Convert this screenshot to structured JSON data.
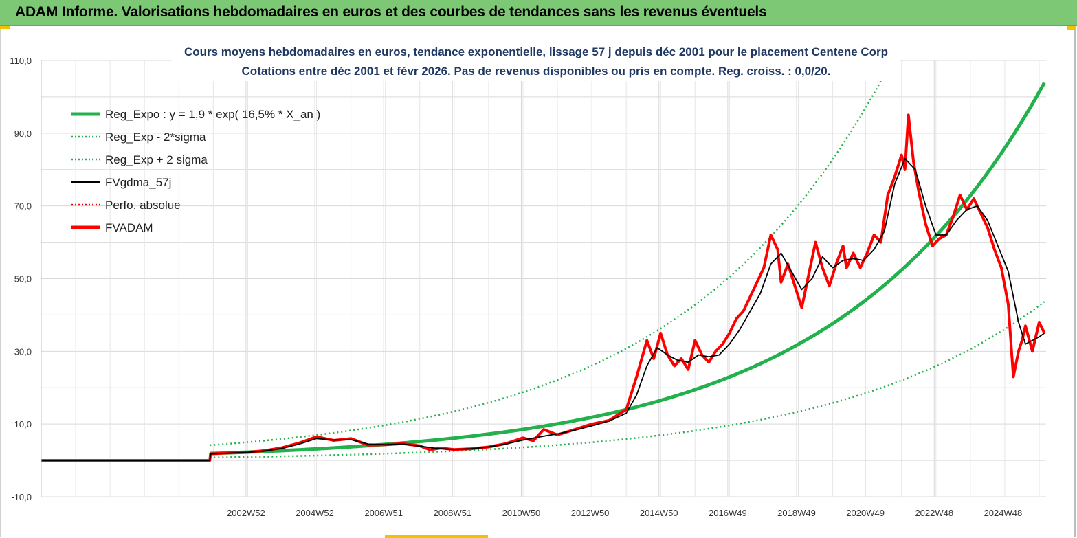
{
  "header": {
    "title": "ADAM Informe. Valorisations hebdomadaires en euros et des courbes de tendances sans les revenus éventuels"
  },
  "chart_data": {
    "type": "line",
    "subtitle_line1": "Cours moyens hebdomadaires en euros, tendance exponentielle, lissage 57 j depuis déc 2001 pour le placement Centene Corp",
    "subtitle_line2": "Cotations entre déc 2001 et févr 2026. Pas de revenus disponibles ou pris en compte. Reg. croiss. : 0,0/20.",
    "ylim": [
      -10,
      110
    ],
    "yticks": [
      "-10,0",
      "10,0",
      "30,0",
      "50,0",
      "70,0",
      "90,0",
      "110,0"
    ],
    "xlim": [
      1997,
      2026.2
    ],
    "xticks": [
      {
        "label": "2002W52",
        "x": 2002.95
      },
      {
        "label": "2004W52",
        "x": 2004.95
      },
      {
        "label": "2006W51",
        "x": 2006.95
      },
      {
        "label": "2008W51",
        "x": 2008.95
      },
      {
        "label": "2010W50",
        "x": 2010.95
      },
      {
        "label": "2012W50",
        "x": 2012.95
      },
      {
        "label": "2014W50",
        "x": 2014.95
      },
      {
        "label": "2016W49",
        "x": 2016.95
      },
      {
        "label": "2018W49",
        "x": 2018.95
      },
      {
        "label": "2020W49",
        "x": 2020.95
      },
      {
        "label": "2022W48",
        "x": 2022.95
      },
      {
        "label": "2024W48",
        "x": 2024.95
      }
    ],
    "grid": true,
    "legend_position": "top-left",
    "legend": [
      {
        "label": "Reg_Expo : y = 1,9 * exp( 16,5% *  X_an )",
        "color": "#22b14c",
        "style": "solid-thick"
      },
      {
        "label": "Reg_Exp - 2*sigma",
        "color": "#22b14c",
        "style": "dotted"
      },
      {
        "label": "Reg_Exp + 2 sigma",
        "color": "#22b14c",
        "style": "dotted"
      },
      {
        "label": "FVgdma_57j",
        "color": "#000000",
        "style": "solid"
      },
      {
        "label": "Perfo. absolue",
        "color": "#ff0000",
        "style": "dotted"
      },
      {
        "label": "FVADAM",
        "color": "#ff0000",
        "style": "solid-thick"
      }
    ],
    "regression": {
      "a": 1.9,
      "rate": 0.165,
      "x0": 2001.9,
      "x_end": 2026.15,
      "lower_factor": 0.42,
      "upper_factor": 2.2
    },
    "series": [
      {
        "name": "FVADAM",
        "color": "#ff0000",
        "x": [
          1997.0,
          2001.9,
          2001.92,
          2002.5,
          2003.0,
          2003.5,
          2004.0,
          2004.5,
          2005.0,
          2005.5,
          2006.0,
          2006.5,
          2007.0,
          2007.5,
          2008.0,
          2008.3,
          2008.6,
          2009.0,
          2009.5,
          2010.0,
          2010.5,
          2011.0,
          2011.3,
          2011.6,
          2012.0,
          2012.5,
          2013.0,
          2013.5,
          2014.0,
          2014.3,
          2014.6,
          2014.8,
          2015.0,
          2015.2,
          2015.4,
          2015.6,
          2015.8,
          2016.0,
          2016.2,
          2016.4,
          2016.6,
          2016.8,
          2017.0,
          2017.2,
          2017.4,
          2017.6,
          2017.8,
          2018.0,
          2018.2,
          2018.4,
          2018.5,
          2018.7,
          2018.9,
          2019.1,
          2019.3,
          2019.5,
          2019.7,
          2019.9,
          2020.1,
          2020.3,
          2020.4,
          2020.6,
          2020.8,
          2021.0,
          2021.2,
          2021.4,
          2021.6,
          2021.8,
          2022.0,
          2022.1,
          2022.2,
          2022.35,
          2022.5,
          2022.7,
          2022.9,
          2023.1,
          2023.3,
          2023.5,
          2023.7,
          2023.9,
          2024.1,
          2024.3,
          2024.5,
          2024.7,
          2024.9,
          2025.1,
          2025.25,
          2025.4,
          2025.5,
          2025.6,
          2025.8,
          2026.0,
          2026.15
        ],
        "values": [
          0.0,
          0.0,
          1.8,
          2.1,
          2.2,
          2.7,
          3.5,
          4.8,
          6.5,
          5.5,
          6.0,
          4.2,
          4.3,
          4.6,
          4.0,
          2.9,
          3.4,
          3.0,
          3.2,
          3.7,
          4.6,
          6.2,
          5.4,
          8.5,
          7.0,
          8.5,
          10.0,
          11.0,
          14.0,
          23.0,
          33.0,
          28.0,
          35.0,
          29.0,
          26.0,
          28.0,
          25.0,
          33.0,
          29.0,
          27.0,
          30.0,
          32.0,
          35.0,
          39.0,
          41.0,
          45.0,
          49.0,
          53.0,
          62.0,
          58.0,
          49.0,
          54.0,
          48.0,
          42.0,
          51.0,
          60.0,
          53.0,
          48.0,
          54.0,
          59.0,
          53.0,
          57.0,
          53.0,
          57.0,
          62.0,
          60.0,
          73.0,
          78.0,
          84.0,
          80.0,
          95.0,
          82.0,
          74.0,
          65.0,
          59.0,
          61.0,
          62.0,
          67.0,
          73.0,
          69.0,
          72.0,
          68.0,
          64.0,
          58.0,
          53.0,
          43.0,
          23.0,
          30.0,
          33.0,
          37.0,
          30.0,
          38.0,
          35.0
        ]
      },
      {
        "name": "FVgdma_57j",
        "color": "#000000",
        "x": [
          1997.0,
          2001.9,
          2001.92,
          2002.5,
          2003.0,
          2003.5,
          2004.0,
          2004.5,
          2005.0,
          2005.5,
          2006.0,
          2006.5,
          2007.0,
          2007.5,
          2008.0,
          2008.5,
          2009.0,
          2009.5,
          2010.0,
          2010.5,
          2011.0,
          2011.5,
          2012.0,
          2012.5,
          2013.0,
          2013.5,
          2014.0,
          2014.3,
          2014.6,
          2014.9,
          2015.2,
          2015.5,
          2015.8,
          2016.1,
          2016.4,
          2016.7,
          2017.0,
          2017.3,
          2017.6,
          2017.9,
          2018.2,
          2018.5,
          2018.8,
          2019.1,
          2019.4,
          2019.7,
          2020.0,
          2020.3,
          2020.6,
          2020.9,
          2021.2,
          2021.5,
          2021.8,
          2022.1,
          2022.4,
          2022.7,
          2023.0,
          2023.3,
          2023.6,
          2023.9,
          2024.2,
          2024.5,
          2024.8,
          2025.1,
          2025.4,
          2025.6,
          2025.8,
          2026.0,
          2026.15
        ],
        "values": [
          0.0,
          0.0,
          1.8,
          2.0,
          2.2,
          2.6,
          3.3,
          4.5,
          6.0,
          5.6,
          5.7,
          4.5,
          4.3,
          4.5,
          3.9,
          3.3,
          3.0,
          3.2,
          3.7,
          4.5,
          5.6,
          6.5,
          7.3,
          8.3,
          9.5,
          10.8,
          13.0,
          18.0,
          26.0,
          31.0,
          29.0,
          27.5,
          27.0,
          29.0,
          28.5,
          29.0,
          32.0,
          36.0,
          41.0,
          46.0,
          54.0,
          57.0,
          52.0,
          47.0,
          50.0,
          56.0,
          53.0,
          55.0,
          55.5,
          55.0,
          58.0,
          63.0,
          76.0,
          83.0,
          80.0,
          70.0,
          62.0,
          62.0,
          66.0,
          69.0,
          70.0,
          66.0,
          59.0,
          52.0,
          38.0,
          32.0,
          33.0,
          34.0,
          35.0
        ]
      }
    ]
  }
}
